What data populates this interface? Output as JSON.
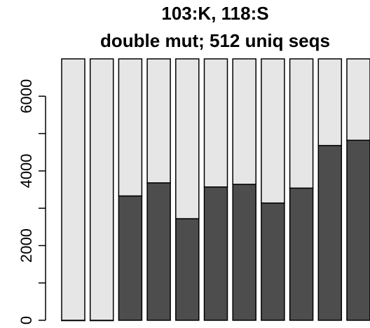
{
  "chart_data": {
    "type": "bar",
    "stacked": true,
    "title": "103:K, 118:S",
    "subtitle": "double mut; 512 uniq seqs",
    "xlabel": "",
    "ylabel": "",
    "ylim": [
      0,
      7000
    ],
    "yticks": [
      0,
      1000,
      2000,
      3000,
      4000,
      5000,
      6000
    ],
    "ytick_labels": [
      "0",
      "2000",
      "4000",
      "6000"
    ],
    "grid": false,
    "legend": "none",
    "colors": {
      "lower": "#4d4d4d",
      "upper": "#e6e6e6",
      "stroke": "#000000"
    },
    "series": [
      {
        "values": [
          0,
          0,
          3330,
          3680,
          2720,
          3570,
          3640,
          3140,
          3540,
          4680,
          4820
        ]
      },
      {
        "values": [
          7000,
          7000,
          3670,
          3320,
          4280,
          3430,
          3360,
          3860,
          3460,
          2320,
          2180
        ]
      }
    ]
  }
}
